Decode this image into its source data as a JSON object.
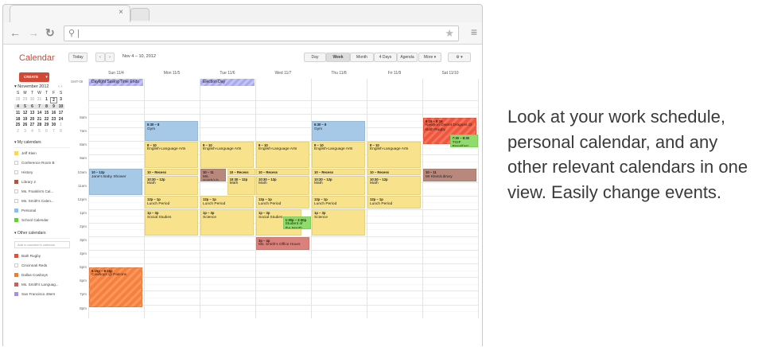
{
  "browser": {
    "address_placeholder": "|"
  },
  "app": {
    "title": "Calendar",
    "today": "Today",
    "prev": "‹",
    "next": "›",
    "date_range": "Nov 4 – 10, 2012",
    "views": [
      "Day",
      "Week",
      "Month",
      "4 Days",
      "Agenda"
    ],
    "active_view": "Week",
    "more": "More ▾",
    "settings": "⚙ ▾",
    "create": "CREATE",
    "create_arrow": "▾"
  },
  "mini_calendar": {
    "title": "November 2012",
    "weekdays": [
      "S",
      "M",
      "T",
      "W",
      "T",
      "F",
      "S"
    ],
    "weeks": [
      [
        "28",
        "29",
        "30",
        "31",
        "1",
        "2",
        "3"
      ],
      [
        "4",
        "5",
        "6",
        "7",
        "8",
        "9",
        "10"
      ],
      [
        "11",
        "12",
        "13",
        "14",
        "15",
        "16",
        "17"
      ],
      [
        "18",
        "19",
        "20",
        "21",
        "22",
        "23",
        "24"
      ],
      [
        "25",
        "26",
        "27",
        "28",
        "29",
        "30",
        "1"
      ],
      [
        "2",
        "3",
        "4",
        "5",
        "6",
        "7",
        "8"
      ]
    ],
    "today": "2"
  },
  "my_calendars": {
    "title": "My calendars",
    "items": [
      {
        "label": "Jeff Klein",
        "color": "#f5d85c"
      },
      {
        "label": "Conference Room B",
        "color": ""
      },
      {
        "label": "History",
        "color": ""
      },
      {
        "label": "Library 2",
        "color": "#a55a46"
      },
      {
        "label": "Ms. Franklin's Cal...",
        "color": ""
      },
      {
        "label": "Ms. Smith's Calen...",
        "color": ""
      },
      {
        "label": "Personal",
        "color": "#8fbfe8"
      },
      {
        "label": "School Calendar",
        "color": "#6cc94a"
      }
    ]
  },
  "other_calendars": {
    "title": "Other calendars",
    "add_placeholder": "Add a coworker's calendar",
    "items": [
      {
        "label": "Bath Rugby",
        "color": "#f04b2f"
      },
      {
        "label": "Cincinnati Reds",
        "color": ""
      },
      {
        "label": "Dallas Cowboys",
        "color": "#f47b2a"
      },
      {
        "label": "Ms. Smith's Languag...",
        "color": "#c9605a"
      },
      {
        "label": "San Francisco 49ers",
        "color": "#a98cf0"
      }
    ]
  },
  "timezone": "GMT-08",
  "days": [
    "Sun 11/4",
    "Mon 11/5",
    "Tue 11/6",
    "Wed 11/7",
    "Thu 11/8",
    "Fri 11/9",
    "Sat 11/10"
  ],
  "hours": [
    "6am",
    "7am",
    "8am",
    "9am",
    "10am",
    "11am",
    "12pm",
    "1pm",
    "2pm",
    "3pm",
    "4pm",
    "5pm",
    "6pm",
    "7pm",
    "8pm"
  ],
  "all_day": [
    {
      "day": 0,
      "title": "Daylight Saving Time Ends"
    },
    {
      "day": 2,
      "title": "Election Day"
    }
  ],
  "colors": {
    "yellow": "#f8e38c",
    "blue": "#a6c9e8",
    "brown": "#b8887c",
    "green": "#8fdc6a",
    "orange": "#f7813c",
    "red": "#f0563c",
    "redbrown": "#d9817a"
  },
  "events": [
    {
      "day": 0,
      "start": 10,
      "end": 12,
      "time": "10 – 12p",
      "title": "Jane's Baby Shower",
      "color": "blue"
    },
    {
      "day": 0,
      "start": 17.25,
      "end": 20.25,
      "time": "5:15p – 8:15p",
      "title": "Cowboys @ Falcons",
      "color": "orange",
      "striped": true
    },
    {
      "day": 1,
      "start": 6.5,
      "end": 8,
      "time": "6:30 – 8",
      "title": "Gym",
      "color": "blue"
    },
    {
      "day": 1,
      "start": 8,
      "end": 10,
      "time": "8 – 10",
      "title": "English-Language Arts",
      "color": "yellow"
    },
    {
      "day": 1,
      "start": 10,
      "end": 10.5,
      "time": "10 – Recess",
      "title": "",
      "color": "yellow"
    },
    {
      "day": 1,
      "start": 10.5,
      "end": 12,
      "time": "10:30 – 12p",
      "title": "Math",
      "color": "yellow"
    },
    {
      "day": 1,
      "start": 12,
      "end": 13,
      "time": "12p – 1p",
      "title": "Lunch Period",
      "color": "yellow"
    },
    {
      "day": 1,
      "start": 13,
      "end": 15,
      "time": "1p – 3p",
      "title": "Social Studies",
      "color": "yellow"
    },
    {
      "day": 2,
      "start": 8,
      "end": 10,
      "time": "8 – 10",
      "title": "English-Language Arts",
      "color": "yellow"
    },
    {
      "day": 2,
      "start": 10,
      "end": 11,
      "time": "10 – 11",
      "title": "Ms. Smith/Lib",
      "color": "brown",
      "half": "left"
    },
    {
      "day": 2,
      "start": 10,
      "end": 10.5,
      "time": "10 – Recess",
      "title": "",
      "color": "yellow",
      "half": "right"
    },
    {
      "day": 2,
      "start": 10.5,
      "end": 12,
      "time": "10:30 – 12p",
      "title": "Math",
      "color": "yellow",
      "half": "right"
    },
    {
      "day": 2,
      "start": 12,
      "end": 13,
      "time": "12p – 1p",
      "title": "Lunch Period",
      "color": "yellow"
    },
    {
      "day": 2,
      "start": 13,
      "end": 15,
      "time": "1p – 3p",
      "title": "Science",
      "color": "yellow"
    },
    {
      "day": 3,
      "start": 8,
      "end": 10,
      "time": "8 – 10",
      "title": "English-Language Arts",
      "color": "yellow"
    },
    {
      "day": 3,
      "start": 10,
      "end": 10.5,
      "time": "10 – Recess",
      "title": "",
      "color": "yellow"
    },
    {
      "day": 3,
      "start": 10.5,
      "end": 12,
      "time": "10:30 – 12p",
      "title": "Math",
      "color": "yellow"
    },
    {
      "day": 3,
      "start": 12,
      "end": 13,
      "time": "12p – 1p",
      "title": "Lunch Period",
      "color": "yellow"
    },
    {
      "day": 3,
      "start": 13,
      "end": 15,
      "time": "1p – 3p",
      "title": "Social Studies",
      "color": "yellow",
      "half": "wide"
    },
    {
      "day": 3,
      "start": 13.5,
      "end": 14.5,
      "time": "1:30p – 2:30p",
      "title": "Student of the Month",
      "color": "green",
      "half": "overlay"
    },
    {
      "day": 3,
      "start": 15,
      "end": 16,
      "time": "3p – 4p",
      "title": "Ms. Smith's Office Hours",
      "color": "redbrown"
    },
    {
      "day": 4,
      "start": 6.5,
      "end": 8,
      "time": "6:30 – 8",
      "title": "Gym",
      "color": "blue"
    },
    {
      "day": 4,
      "start": 8,
      "end": 10,
      "time": "8 – 10",
      "title": "English-Language Arts",
      "color": "yellow"
    },
    {
      "day": 4,
      "start": 10,
      "end": 10.5,
      "time": "10 – Recess",
      "title": "",
      "color": "yellow"
    },
    {
      "day": 4,
      "start": 10.5,
      "end": 12,
      "time": "10:30 – 12p",
      "title": "Math",
      "color": "yellow"
    },
    {
      "day": 4,
      "start": 12,
      "end": 13,
      "time": "12p – 1p",
      "title": "Lunch Period",
      "color": "yellow"
    },
    {
      "day": 4,
      "start": 13,
      "end": 15,
      "time": "1p – 3p",
      "title": "Science",
      "color": "yellow"
    },
    {
      "day": 5,
      "start": 8,
      "end": 10,
      "time": "8 – 10",
      "title": "English-Language Arts",
      "color": "yellow"
    },
    {
      "day": 5,
      "start": 10,
      "end": 10.5,
      "time": "10 – Recess",
      "title": "",
      "color": "yellow"
    },
    {
      "day": 5,
      "start": 10.5,
      "end": 12,
      "time": "10:30 – 12p",
      "title": "Math",
      "color": "yellow"
    },
    {
      "day": 5,
      "start": 12,
      "end": 13,
      "time": "12p – 1p",
      "title": "Lunch Period",
      "color": "yellow"
    },
    {
      "day": 6,
      "start": 6.25,
      "end": 8.25,
      "time": "6:15 – 8:15",
      "title": "Newport Gwent Dragons @ Bath Rugby",
      "color": "red",
      "striped": true
    },
    {
      "day": 6,
      "start": 7.5,
      "end": 8.5,
      "time": "7:30 – 8:30",
      "title": "TGIF Breakfast",
      "color": "green",
      "half": "overlay"
    },
    {
      "day": 6,
      "start": 10,
      "end": 11,
      "time": "10 – 11",
      "title": "Mr Klein/Library",
      "color": "brown"
    }
  ],
  "promo": "Look at your work schedule, personal calendar, and any other relevant calendars in one view. Easily change events."
}
